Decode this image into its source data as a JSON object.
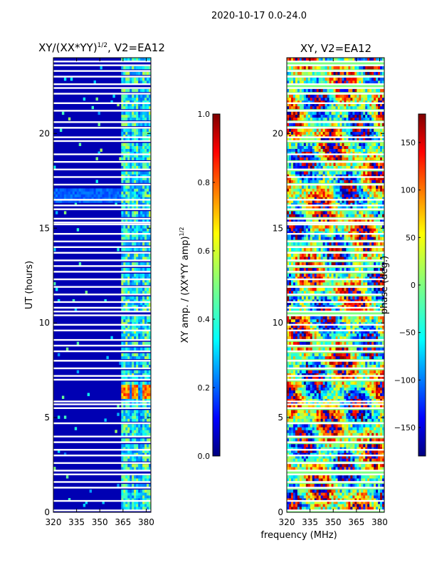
{
  "page_title": "2020-10-17 0.0-24.0",
  "shared_xlabel": "frequency (MHz)",
  "colormap": [
    "#00007f",
    "#0000ff",
    "#0080ff",
    "#00ffff",
    "#80ff80",
    "#ffff00",
    "#ff8000",
    "#ff0000",
    "#7f0000"
  ],
  "chart_data": [
    {
      "type": "heatmap",
      "title": "XY/(XX*YY)^{1/2}, V2=EA12",
      "title_main": "XY/(XX*YY)",
      "title_exp": "1/2",
      "title_suffix": ", V2=EA12",
      "xlabel": "",
      "ylabel": "UT (hours)",
      "xlim": [
        320,
        383
      ],
      "ylim": [
        0,
        24
      ],
      "xticks": [
        "320",
        "335",
        "350",
        "365",
        "380"
      ],
      "yticks": [
        "0",
        "5",
        "10",
        "15",
        "20"
      ],
      "xtick_values": [
        320,
        335,
        350,
        365,
        380
      ],
      "ytick_values": [
        0,
        5,
        10,
        15,
        20
      ],
      "colorbar": {
        "label": "XY amp. / (XX*YY amp)^{1/2}",
        "label_main": "XY amp. / (XX*YY amp)",
        "label_exp": "1/2",
        "range": [
          0.0,
          1.0
        ],
        "ticks": [
          "0.0",
          "0.2",
          "0.4",
          "0.6",
          "0.8",
          "1.0"
        ],
        "tick_values": [
          0.0,
          0.2,
          0.4,
          0.6,
          0.8,
          1.0
        ]
      },
      "description_values": {
        "background_level": 0.05,
        "band_365_382_level": 0.4,
        "bright_rfi_hour_range": [
          6.0,
          6.8
        ]
      }
    },
    {
      "type": "heatmap",
      "title": "XY, V2=EA12",
      "xlabel": "frequency (MHz)",
      "ylabel": "",
      "xlim": [
        320,
        383
      ],
      "ylim": [
        0,
        24
      ],
      "xticks": [
        "320",
        "335",
        "350",
        "365",
        "380"
      ],
      "yticks": [
        "0",
        "5",
        "10",
        "15",
        "20"
      ],
      "xtick_values": [
        320,
        335,
        350,
        365,
        380
      ],
      "ytick_values": [
        0,
        5,
        10,
        15,
        20
      ],
      "colorbar": {
        "label": "phase (deg.)",
        "range": [
          -180,
          180
        ],
        "ticks": [
          "−150",
          "−100",
          "−50",
          "0",
          "50",
          "100",
          "150"
        ],
        "tick_values": [
          -150,
          -100,
          -50,
          0,
          50,
          100,
          150
        ]
      }
    }
  ],
  "flag_hours": [
    0.1,
    0.6,
    1.3,
    1.6,
    2.0,
    2.2,
    2.6,
    3.0,
    3.3,
    3.7,
    4.0,
    4.7,
    5.5,
    5.7,
    5.85,
    7.0,
    7.2,
    7.6,
    8.0,
    8.5,
    8.8,
    9.1,
    9.6,
    9.9,
    10.4,
    10.6,
    10.8,
    11.1,
    11.5,
    11.9,
    12.3,
    12.7,
    13.0,
    13.3,
    13.7,
    14.0,
    14.3,
    14.7,
    15.2,
    15.3,
    15.5,
    16.0,
    16.2,
    16.5,
    17.3,
    17.7,
    18.1,
    18.5,
    18.9,
    19.6,
    19.8,
    20.3,
    20.6,
    21.2,
    21.6,
    22.1,
    22.4,
    22.6,
    23.0,
    23.3,
    23.6,
    23.8
  ]
}
